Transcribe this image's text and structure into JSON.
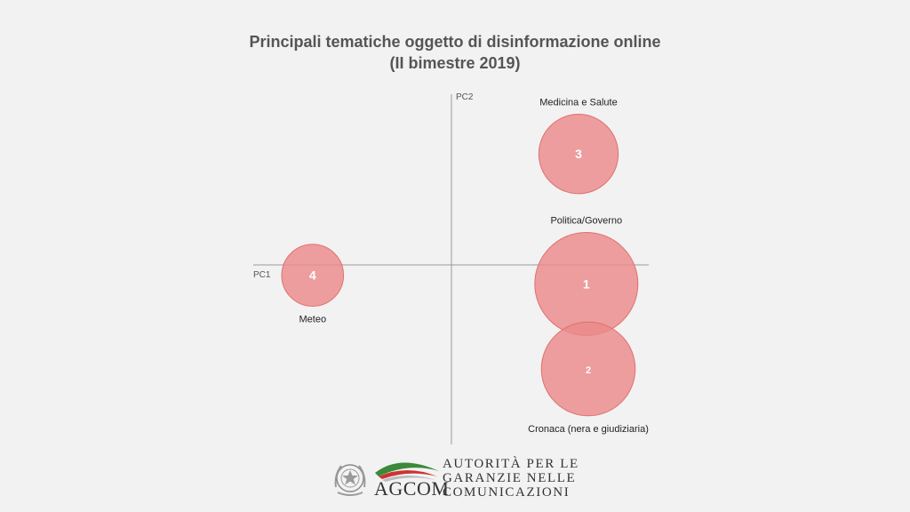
{
  "chart_data": {
    "type": "scatter",
    "title_line1": "Principali tematiche oggetto di disinformazione online",
    "title_line2": "(II bimestre 2019)",
    "xlabel": "PC1",
    "ylabel": "PC2",
    "xlim": [
      -1,
      1
    ],
    "ylim": [
      -1,
      1
    ],
    "grid": false,
    "color": "#eb8a8a",
    "stroke": "#e07070",
    "points": [
      {
        "id": "1",
        "label": "Politica/Governo",
        "x": 0.69,
        "y": -0.11,
        "size": 1.0,
        "label_pos": "above"
      },
      {
        "id": "2",
        "label": "Cronaca (nera e giudiziaria)",
        "x": 0.7,
        "y": -0.6,
        "size": 0.91,
        "label_pos": "below"
      },
      {
        "id": "3",
        "label": "Medicina e Salute",
        "x": 0.65,
        "y": 0.64,
        "size": 0.77,
        "label_pos": "above"
      },
      {
        "id": "4",
        "label": "Meteo",
        "x": -0.71,
        "y": -0.06,
        "size": 0.6,
        "label_pos": "below"
      }
    ]
  },
  "footer": {
    "logo_text": "AGCOM",
    "authority_lines": [
      "AUTORITÀ PER LE",
      "GARANZIE NELLE",
      "COMUNICAZIONI"
    ],
    "colors": {
      "green": "#3a8a3a",
      "red": "#cc3333",
      "gray": "#888888"
    }
  }
}
